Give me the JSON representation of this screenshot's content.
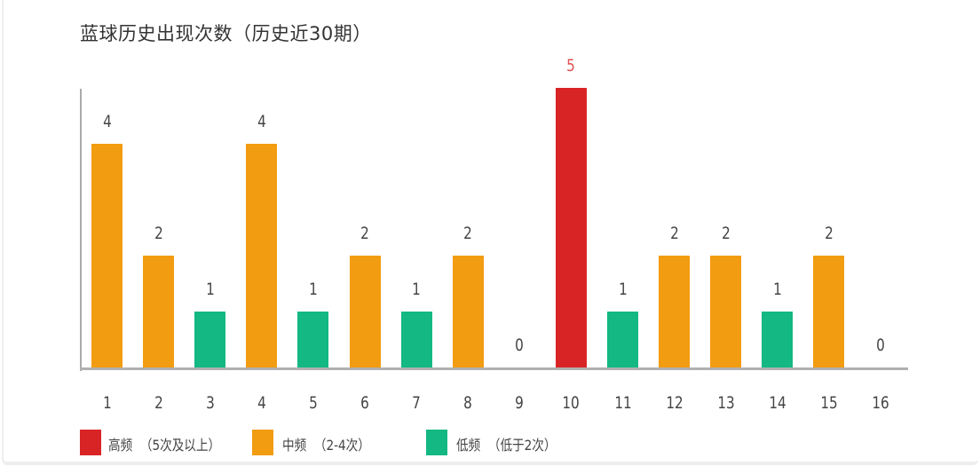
{
  "chart_data": {
    "type": "bar",
    "title": "蓝球历史出现次数（历史近30期）",
    "xlabel": "",
    "ylabel": "",
    "ylim": [
      0,
      5
    ],
    "grid": false,
    "categories": [
      "1",
      "2",
      "3",
      "4",
      "5",
      "6",
      "7",
      "8",
      "9",
      "10",
      "11",
      "12",
      "13",
      "14",
      "15",
      "16"
    ],
    "values": [
      4,
      2,
      1,
      4,
      1,
      2,
      1,
      2,
      0,
      5,
      1,
      2,
      2,
      1,
      2,
      0
    ],
    "bar_levels": [
      "mid",
      "mid",
      "low",
      "mid",
      "low",
      "mid",
      "low",
      "mid",
      "low",
      "high",
      "low",
      "mid",
      "mid",
      "low",
      "mid",
      "low"
    ],
    "legend": [
      {
        "key": "high",
        "label": "高频",
        "desc": "(5次及以上)",
        "color": "#d92426"
      },
      {
        "key": "mid",
        "label": "中频",
        "desc": "(2-4次)",
        "color": "#f29c11"
      },
      {
        "key": "low",
        "label": "低频",
        "desc": "(低于2次)",
        "color": "#13b882"
      }
    ],
    "legend_position": "bottom-left",
    "high_value_label_color": "#e05050"
  },
  "header": {
    "title": "蓝球历史出现次数（历史近30期）"
  },
  "legend": {
    "high": {
      "label": "高频",
      "desc": "（5次及以上）"
    },
    "mid": {
      "label": "中频",
      "desc": "（2-4次）"
    },
    "low": {
      "label": "低频",
      "desc": "（低于2次）"
    }
  }
}
